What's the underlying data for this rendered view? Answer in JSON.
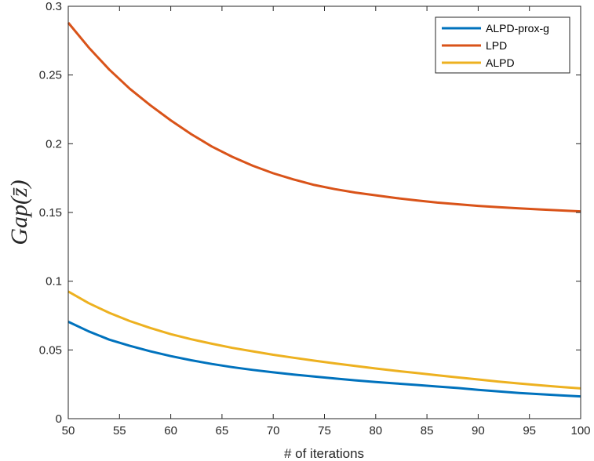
{
  "chart_data": {
    "type": "line",
    "xlabel": "# of iterations",
    "ylabel": "Gap(z̄)",
    "xlim": [
      50,
      100
    ],
    "ylim": [
      0,
      0.3
    ],
    "xticks": [
      50,
      55,
      60,
      65,
      70,
      75,
      80,
      85,
      90,
      95,
      100
    ],
    "yticks": [
      0,
      0.05,
      0.1,
      0.15,
      0.2,
      0.25,
      0.3
    ],
    "ytick_labels": [
      "0",
      "0.05",
      "0.1",
      "0.15",
      "0.2",
      "0.25",
      "0.3"
    ],
    "grid": false,
    "legend_position": "top-right",
    "x": [
      50,
      52,
      54,
      56,
      58,
      60,
      62,
      64,
      66,
      68,
      70,
      72,
      74,
      76,
      78,
      80,
      82,
      84,
      86,
      88,
      90,
      92,
      94,
      96,
      98,
      100
    ],
    "series": [
      {
        "name": "ALPD-prox-g",
        "color": "#0072BD",
        "values": [
          0.0705,
          0.0635,
          0.0575,
          0.053,
          0.049,
          0.0455,
          0.0425,
          0.0398,
          0.0375,
          0.0355,
          0.0337,
          0.0321,
          0.0306,
          0.0292,
          0.0279,
          0.0267,
          0.0256,
          0.0245,
          0.0234,
          0.0223,
          0.021,
          0.0198,
          0.0187,
          0.0178,
          0.017,
          0.0162
        ]
      },
      {
        "name": "LPD",
        "color": "#D95319",
        "values": [
          0.288,
          0.27,
          0.254,
          0.24,
          0.228,
          0.217,
          0.207,
          0.198,
          0.1905,
          0.184,
          0.1785,
          0.174,
          0.17,
          0.167,
          0.1645,
          0.1625,
          0.1605,
          0.1588,
          0.1572,
          0.156,
          0.1548,
          0.1538,
          0.153,
          0.1522,
          0.1515,
          0.1508
        ]
      },
      {
        "name": "ALPD",
        "color": "#EDB120",
        "values": [
          0.0925,
          0.084,
          0.077,
          0.071,
          0.066,
          0.0615,
          0.0578,
          0.0545,
          0.0515,
          0.049,
          0.0465,
          0.0443,
          0.0422,
          0.0402,
          0.0383,
          0.0365,
          0.0348,
          0.0332,
          0.0316,
          0.03,
          0.0285,
          0.027,
          0.0256,
          0.0243,
          0.0231,
          0.022
        ]
      }
    ]
  }
}
